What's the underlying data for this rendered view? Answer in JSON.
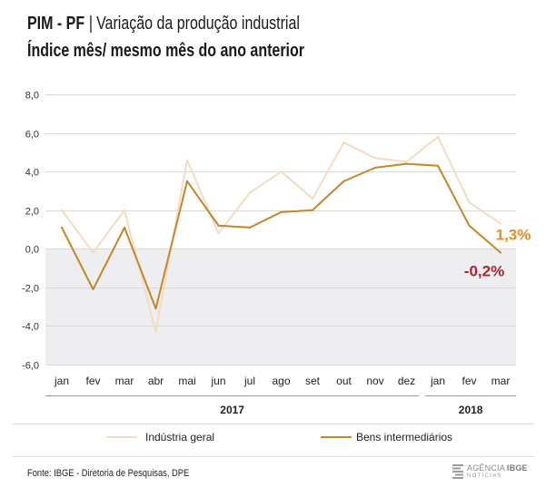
{
  "chart_data": {
    "type": "line",
    "title": {
      "code": "PIM - PF",
      "separator": "|",
      "text": "Variação da produção industrial"
    },
    "subtitle": "Índice mês/ mesmo mês do ano anterior",
    "categories": [
      "jan",
      "fev",
      "mar",
      "abr",
      "mai",
      "jun",
      "jul",
      "ago",
      "set",
      "out",
      "nov",
      "dez",
      "jan",
      "fev",
      "mar"
    ],
    "category_groups": [
      {
        "label": "2017",
        "first": 0,
        "last": 11
      },
      {
        "label": "2018",
        "first": 12,
        "last": 14
      }
    ],
    "ylim": [
      -6,
      8
    ],
    "y_ticks": [
      {
        "value": 8,
        "label": "8,0"
      },
      {
        "value": 6,
        "label": "6,0"
      },
      {
        "value": 4,
        "label": "4,0"
      },
      {
        "value": 2,
        "label": "2,0"
      },
      {
        "value": 0,
        "label": "0,0"
      },
      {
        "value": -2,
        "label": "-2,0"
      },
      {
        "value": -4,
        "label": "-4,0"
      },
      {
        "value": -6,
        "label": "-6,0"
      }
    ],
    "grid": true,
    "negative_region_shaded": true,
    "series": [
      {
        "name": "Indústria geral",
        "color": "#f3dcc3",
        "values": [
          2.0,
          -0.2,
          2.0,
          -4.3,
          4.6,
          0.8,
          2.9,
          4.0,
          2.6,
          5.5,
          4.7,
          4.5,
          5.8,
          2.4,
          1.3
        ]
      },
      {
        "name": "Bens intermediários",
        "color": "#c5852a",
        "values": [
          1.1,
          -2.1,
          1.1,
          -3.1,
          3.5,
          1.2,
          1.1,
          1.9,
          2.0,
          3.5,
          4.2,
          4.4,
          4.3,
          1.2,
          -0.2
        ]
      }
    ],
    "annotations": [
      {
        "text": "1,3%",
        "series": 0,
        "index": 14,
        "color": "#ef8a1c"
      },
      {
        "text": "-0,2%",
        "series": 1,
        "index": 14,
        "color": "#b3222b"
      }
    ],
    "legend": "bottom",
    "colors": {
      "negative_band": "#eeeef0",
      "grid": "#d9d9d9",
      "group_rule": "#9a9a9a",
      "rule": "#dddddd"
    }
  },
  "footer": {
    "source": "Fonte: IBGE - Diretoria de Pesquisas, DPE",
    "logo": {
      "prefix": "AGÊNCIA",
      "brand": "IBGE",
      "sub": "NOTÍCIAS"
    }
  }
}
